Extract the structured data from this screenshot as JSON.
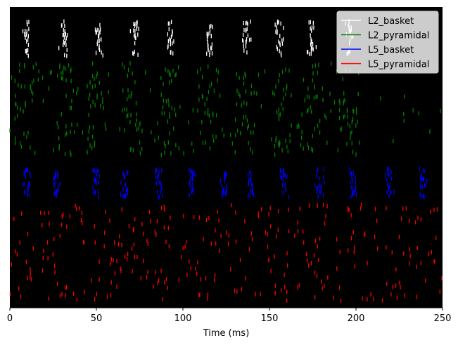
{
  "chart_data": {
    "type": "scatter",
    "xlabel": "Time (ms)",
    "ylabel": "",
    "xlim": [
      0,
      250
    ],
    "xticks": [
      0,
      50,
      100,
      150,
      200,
      250
    ],
    "background": "#000000",
    "legend": {
      "placement": "top-right",
      "entries": [
        {
          "label": "L2_basket",
          "color": "#ffffff"
        },
        {
          "label": "L2_pyramidal",
          "color": "#008000"
        },
        {
          "label": "L5_basket",
          "color": "#0000ff"
        },
        {
          "label": "L5_pyramidal",
          "color": "#ff0000"
        }
      ]
    },
    "series": [
      {
        "name": "L2_basket",
        "color": "#ffffff",
        "band": [
          0.04,
          0.17
        ],
        "burst_times": [
          9.5,
          31.5,
          51,
          72.5,
          93,
          115,
          136.5,
          156,
          174,
          196
        ],
        "burst_jitter": 1.2,
        "density": 22
      },
      {
        "name": "L2_pyramidal",
        "color": "#008000",
        "band": [
          0.18,
          0.5
        ],
        "burst_times": [
          8.5,
          30.5,
          49.5,
          71,
          91.5,
          114,
          135.5,
          155.5,
          174,
          195.5
        ],
        "burst_jitter": 4.0,
        "density": 36,
        "sparse": 60
      },
      {
        "name": "L5_basket",
        "color": "#0000ff",
        "band": [
          0.53,
          0.64
        ],
        "burst_times": [
          10,
          27,
          49.5,
          66.5,
          86,
          105,
          124,
          139.5,
          158.5,
          179,
          198.5,
          219,
          239
        ],
        "burst_jitter": 1.1,
        "density": 20
      },
      {
        "name": "L5_pyramidal",
        "color": "#ff0000",
        "band": [
          0.65,
          0.985
        ],
        "burst_times": [
          10,
          27,
          49.5,
          66.5,
          86,
          105,
          124,
          139.5,
          158.5,
          179,
          198.5,
          219,
          239
        ],
        "burst_jitter": 6.0,
        "density": 14,
        "sparse": 120
      }
    ]
  }
}
